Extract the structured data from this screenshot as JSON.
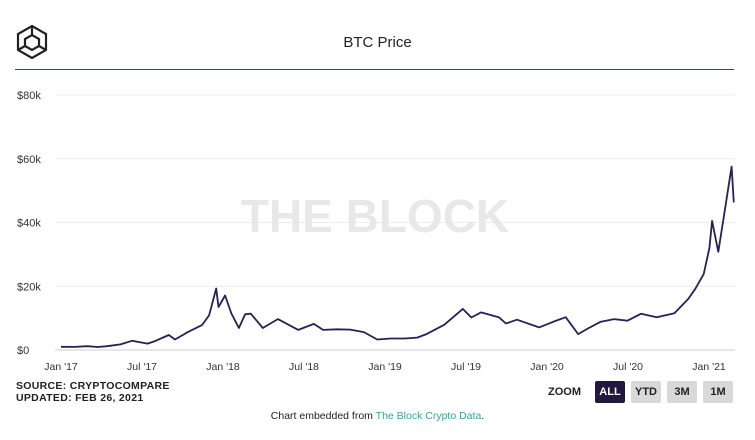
{
  "header": {
    "title": "BTC Price",
    "logo_icon": "the-block-cube-icon"
  },
  "watermark": "THE BLOCK",
  "footer": {
    "source": "SOURCE: CRYPTOCOMPARE",
    "updated": "UPDATED: FEB 26, 2021",
    "credit_prefix": "Chart embedded from ",
    "credit_link": "The Block Crypto Data",
    "credit_suffix": "."
  },
  "zoom": {
    "label": "ZOOM",
    "buttons": [
      "ALL",
      "YTD",
      "3M",
      "1M"
    ],
    "active": "ALL"
  },
  "colors": {
    "line": "#2a1f57",
    "accent_rule": "#8a1f6e",
    "zoom_active": "#23183d",
    "link": "#2fa89a"
  },
  "chart_data": {
    "type": "line",
    "title": "BTC Price",
    "xlabel": "",
    "ylabel": "",
    "x_ticks": [
      "Jan '17",
      "Jul '17",
      "Jan '18",
      "Jul '18",
      "Jan '19",
      "Jul '19",
      "Jan '20",
      "Jul '20",
      "Jan '21"
    ],
    "y_ticks": [
      "$0",
      "$20k",
      "$40k",
      "$60k",
      "$80k"
    ],
    "ylim": [
      0,
      80000
    ],
    "xlim": [
      "2017-01-01",
      "2021-02-26"
    ],
    "grid": true,
    "legend": "none",
    "series": [
      {
        "values": [
          [
            "2017-01-01",
            1000
          ],
          [
            "2017-02-01",
            970
          ],
          [
            "2017-03-01",
            1190
          ],
          [
            "2017-03-25",
            950
          ],
          [
            "2017-04-15",
            1180
          ],
          [
            "2017-05-15",
            1750
          ],
          [
            "2017-06-10",
            2900
          ],
          [
            "2017-07-15",
            2000
          ],
          [
            "2017-08-01",
            2800
          ],
          [
            "2017-09-01",
            4700
          ],
          [
            "2017-09-15",
            3300
          ],
          [
            "2017-10-15",
            5700
          ],
          [
            "2017-11-15",
            7800
          ],
          [
            "2017-12-01",
            10900
          ],
          [
            "2017-12-17",
            19300
          ],
          [
            "2017-12-22",
            13500
          ],
          [
            "2018-01-06",
            17100
          ],
          [
            "2018-01-20",
            11500
          ],
          [
            "2018-02-06",
            6900
          ],
          [
            "2018-02-20",
            11200
          ],
          [
            "2018-03-05",
            11400
          ],
          [
            "2018-04-01",
            6900
          ],
          [
            "2018-05-05",
            9700
          ],
          [
            "2018-06-20",
            6300
          ],
          [
            "2018-07-25",
            8200
          ],
          [
            "2018-08-15",
            6300
          ],
          [
            "2018-09-15",
            6500
          ],
          [
            "2018-10-15",
            6400
          ],
          [
            "2018-11-15",
            5600
          ],
          [
            "2018-12-15",
            3300
          ],
          [
            "2019-01-15",
            3600
          ],
          [
            "2019-02-15",
            3600
          ],
          [
            "2019-03-15",
            3900
          ],
          [
            "2019-04-05",
            5000
          ],
          [
            "2019-05-15",
            7900
          ],
          [
            "2019-06-26",
            12900
          ],
          [
            "2019-07-15",
            10200
          ],
          [
            "2019-08-06",
            11800
          ],
          [
            "2019-09-15",
            10300
          ],
          [
            "2019-10-01",
            8300
          ],
          [
            "2019-10-26",
            9500
          ],
          [
            "2019-12-15",
            7100
          ],
          [
            "2020-01-15",
            8800
          ],
          [
            "2020-02-13",
            10300
          ],
          [
            "2020-03-12",
            5000
          ],
          [
            "2020-04-01",
            6600
          ],
          [
            "2020-05-01",
            8800
          ],
          [
            "2020-06-01",
            9700
          ],
          [
            "2020-07-01",
            9200
          ],
          [
            "2020-08-01",
            11400
          ],
          [
            "2020-09-05",
            10300
          ],
          [
            "2020-10-15",
            11500
          ],
          [
            "2020-11-15",
            16000
          ],
          [
            "2020-12-01",
            19200
          ],
          [
            "2020-12-20",
            23800
          ],
          [
            "2021-01-02",
            32000
          ],
          [
            "2021-01-08",
            40500
          ],
          [
            "2021-01-22",
            30800
          ],
          [
            "2021-02-08",
            46000
          ],
          [
            "2021-02-21",
            57500
          ],
          [
            "2021-02-26",
            46300
          ]
        ]
      }
    ]
  }
}
